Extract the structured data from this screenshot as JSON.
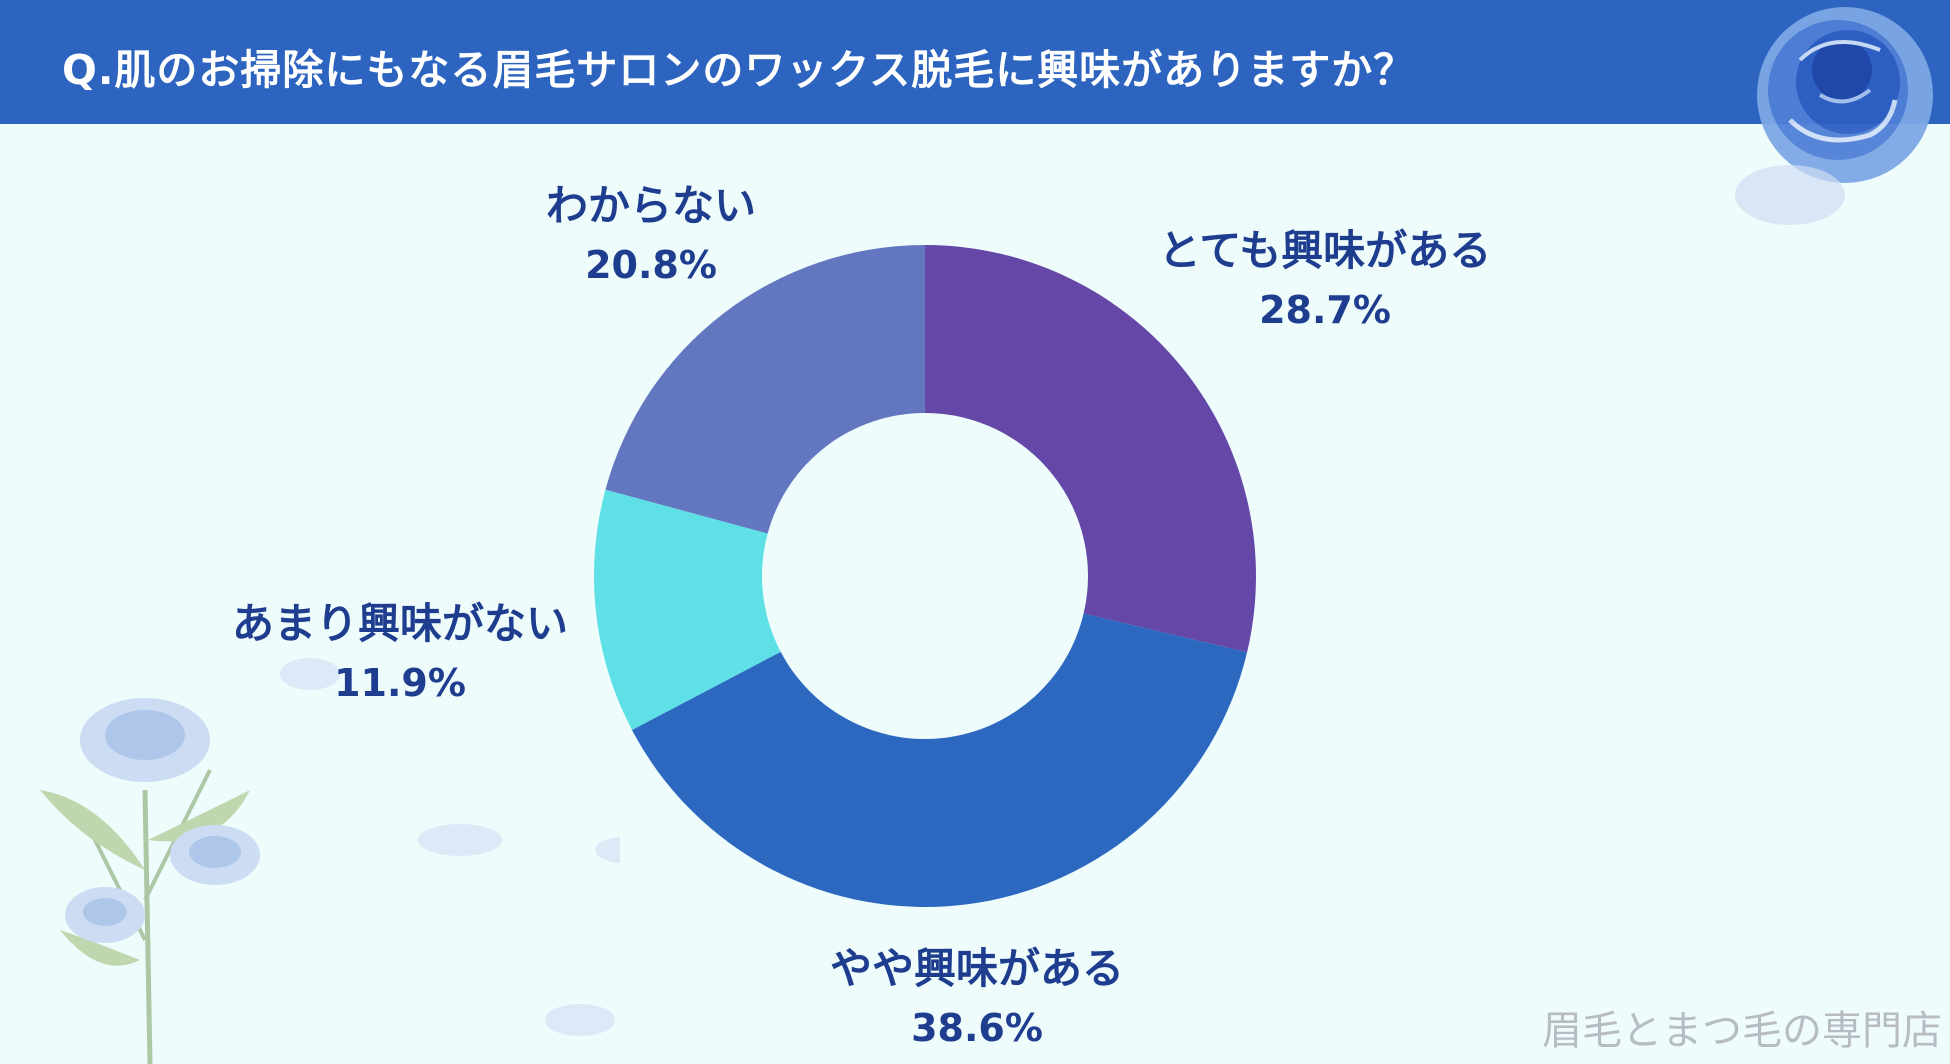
{
  "title": "Q.肌のお掃除にもなる眉毛サロンのワックス脱毛に興味がありますか？",
  "watermark": "眉毛とまつ毛の専門店",
  "colors": {
    "header": "#2c64bf",
    "background": "#eefcfc",
    "label": "#1f3d8f"
  },
  "chart_data": {
    "type": "pie",
    "variant": "donut",
    "slices": [
      {
        "label": "とても興味がある",
        "value": 28.7,
        "value_label": "28.7%",
        "color": "#6447a6"
      },
      {
        "label": "やや興味がある",
        "value": 38.6,
        "value_label": "38.6%",
        "color": "#2c68c0"
      },
      {
        "label": "あまり興味がない",
        "value": 11.9,
        "value_label": "11.9%",
        "color": "#5ee0e6"
      },
      {
        "label": "わからない",
        "value": 20.8,
        "value_label": "20.8%",
        "color": "#6277c0"
      }
    ],
    "start": "12 o'clock",
    "direction": "clockwise"
  }
}
